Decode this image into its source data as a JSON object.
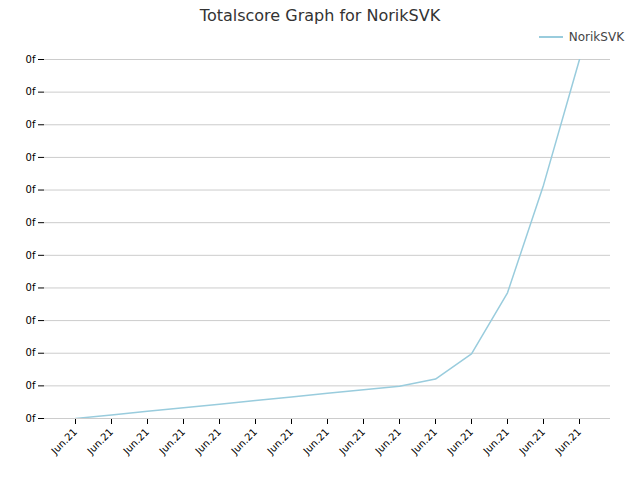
{
  "chart_data": {
    "type": "line",
    "title": "Totalscore Graph for NorikSVK",
    "categories": [
      "Jun.21",
      "Jun.21",
      "Jun.21",
      "Jun.21",
      "Jun.21",
      "Jun.21",
      "Jun.21",
      "Jun.21",
      "Jun.21",
      "Jun.21",
      "Jun.21",
      "Jun.21",
      "Jun.21",
      "Jun.21",
      "Jun.21"
    ],
    "series": [
      {
        "name": "NorikSVK",
        "color": "#99ccdd",
        "values": [
          0,
          1,
          2,
          3,
          4,
          5,
          6,
          7,
          8,
          9,
          11,
          18,
          35,
          65,
          100
        ]
      }
    ],
    "ylim": [
      0,
      100
    ],
    "yticks": [
      {
        "value": 0,
        "label": "0f"
      },
      {
        "value": 9.090909090909092,
        "label": "0f"
      },
      {
        "value": 18.181818181818183,
        "label": "0f"
      },
      {
        "value": 27.272727272727273,
        "label": "0f"
      },
      {
        "value": 36.36363636363637,
        "label": "0f"
      },
      {
        "value": 45.45454545454546,
        "label": "0f"
      },
      {
        "value": 54.54545454545455,
        "label": "0f"
      },
      {
        "value": 63.63636363636364,
        "label": "0f"
      },
      {
        "value": 72.72727272727273,
        "label": "0f"
      },
      {
        "value": 81.81818181818183,
        "label": "0f"
      },
      {
        "value": 90.90909090909092,
        "label": "0f"
      },
      {
        "value": 100,
        "label": "0f"
      }
    ],
    "grid": true,
    "legend": "upper right"
  }
}
